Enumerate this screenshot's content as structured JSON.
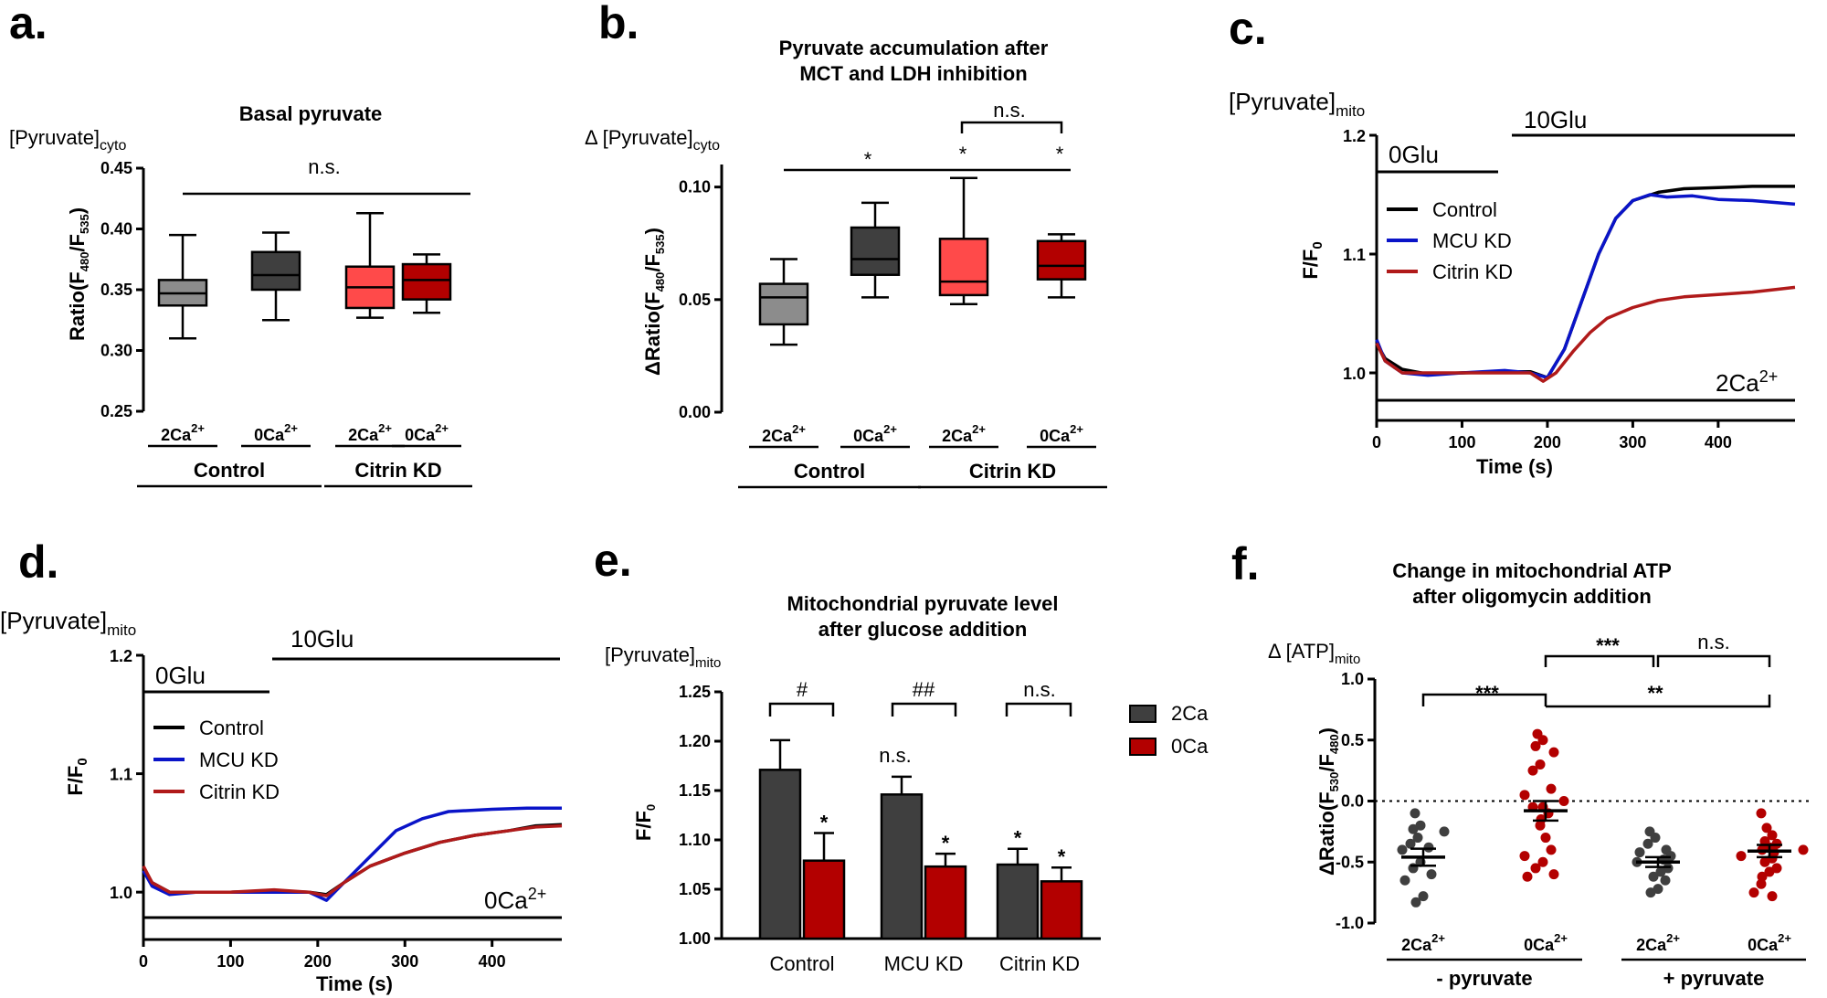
{
  "panels": {
    "a": {
      "letter": "a."
    },
    "b": {
      "letter": "b."
    },
    "c": {
      "letter": "c."
    },
    "d": {
      "letter": "d."
    },
    "e": {
      "letter": "e."
    },
    "f": {
      "letter": "f."
    }
  },
  "chart_data": [
    {
      "id": "a",
      "type": "box",
      "title": "Basal pyruvate",
      "ylabel_top": "[Pyruvate]",
      "ylabel_top_sub": "cyto",
      "ylabel": "Ratio(F",
      "ylabel_sub1": "480",
      "ylabel_mid": "/F",
      "ylabel_sub2": "535",
      "ylabel_end": ")",
      "ylim": [
        0.25,
        0.45
      ],
      "yticks": [
        "0.25",
        "0.30",
        "0.35",
        "0.40",
        "0.45"
      ],
      "categories": [
        "2Ca",
        "0Ca",
        "2Ca",
        "0Ca"
      ],
      "cat_sup": "2+",
      "groups": [
        "Control",
        "Citrin KD"
      ],
      "boxes": [
        {
          "min": 0.31,
          "q1": 0.337,
          "median": 0.347,
          "q3": 0.358,
          "max": 0.395,
          "color": "#8c8c8c"
        },
        {
          "min": 0.325,
          "q1": 0.35,
          "median": 0.362,
          "q3": 0.381,
          "max": 0.397,
          "color": "#3f3f3f"
        },
        {
          "min": 0.327,
          "q1": 0.335,
          "median": 0.352,
          "q3": 0.369,
          "max": 0.413,
          "color": "#ff4a4a"
        },
        {
          "min": 0.331,
          "q1": 0.342,
          "median": 0.358,
          "q3": 0.371,
          "max": 0.379,
          "color": "#b30000"
        }
      ],
      "annotations": {
        "ns": "n.s."
      }
    },
    {
      "id": "b",
      "type": "box",
      "title_line1": "Pyruvate accumulation after",
      "title_line2": "MCT and LDH inhibition",
      "ylabel_top": "Δ [Pyruvate]",
      "ylabel_top_sub": "cyto",
      "ylabel": "ΔRatio(F",
      "ylabel_sub1": "480",
      "ylabel_mid": "/F",
      "ylabel_sub2": "535",
      "ylabel_end": ")",
      "ylim": [
        0.0,
        0.11
      ],
      "yticks": [
        "0.00",
        "0.05",
        "0.10"
      ],
      "categories": [
        "2Ca",
        "0Ca",
        "2Ca",
        "0Ca"
      ],
      "cat_sup": "2+",
      "groups": [
        "Control",
        "Citrin KD"
      ],
      "boxes": [
        {
          "min": 0.03,
          "q1": 0.039,
          "median": 0.051,
          "q3": 0.057,
          "max": 0.068,
          "color": "#8c8c8c"
        },
        {
          "min": 0.051,
          "q1": 0.061,
          "median": 0.068,
          "q3": 0.082,
          "max": 0.093,
          "color": "#3f3f3f"
        },
        {
          "min": 0.048,
          "q1": 0.052,
          "median": 0.058,
          "q3": 0.077,
          "max": 0.104,
          "color": "#ff4a4a"
        },
        {
          "min": 0.051,
          "q1": 0.059,
          "median": 0.065,
          "q3": 0.076,
          "max": 0.079,
          "color": "#b30000"
        }
      ],
      "annotations": {
        "ns": "n.s.",
        "star": "*"
      }
    },
    {
      "id": "c",
      "type": "line",
      "ylabel_top": "[Pyruvate]",
      "ylabel_top_sub": "mito",
      "ylabel": "F/F",
      "ylabel_sub": "0",
      "xlabel": "Time (s)",
      "xlim": [
        0,
        490
      ],
      "ylim": [
        0.96,
        1.2
      ],
      "xticks": [
        "0",
        "100",
        "200",
        "300",
        "400"
      ],
      "yticks": [
        "1.0",
        "1.1",
        "1.2"
      ],
      "bars": {
        "zero_glu": "0Glu",
        "ten_glu": "10Glu",
        "calcium": "2Ca",
        "calcium_sup": "2+"
      },
      "series": [
        {
          "name": "Control",
          "color": "#000000",
          "pts": [
            [
              0,
              1.025
            ],
            [
              10,
              1.012
            ],
            [
              30,
              1.003
            ],
            [
              60,
              0.999
            ],
            [
              100,
              1.0
            ],
            [
              150,
              1.001
            ],
            [
              180,
              1.001
            ],
            [
              200,
              0.996
            ],
            [
              220,
              1.02
            ],
            [
              240,
              1.06
            ],
            [
              260,
              1.1
            ],
            [
              280,
              1.13
            ],
            [
              300,
              1.145
            ],
            [
              330,
              1.152
            ],
            [
              360,
              1.155
            ],
            [
              400,
              1.156
            ],
            [
              440,
              1.157
            ],
            [
              490,
              1.157
            ]
          ]
        },
        {
          "name": "MCU KD",
          "color": "#0a14c8",
          "pts": [
            [
              0,
              1.028
            ],
            [
              10,
              1.01
            ],
            [
              30,
              1.0
            ],
            [
              60,
              0.998
            ],
            [
              100,
              1.0
            ],
            [
              150,
              1.002
            ],
            [
              180,
              1.0
            ],
            [
              200,
              0.996
            ],
            [
              220,
              1.02
            ],
            [
              240,
              1.06
            ],
            [
              260,
              1.1
            ],
            [
              280,
              1.13
            ],
            [
              300,
              1.145
            ],
            [
              320,
              1.15
            ],
            [
              340,
              1.148
            ],
            [
              370,
              1.149
            ],
            [
              400,
              1.146
            ],
            [
              440,
              1.145
            ],
            [
              490,
              1.142
            ]
          ]
        },
        {
          "name": "Citrin KD",
          "color": "#b01a1a",
          "pts": [
            [
              0,
              1.025
            ],
            [
              10,
              1.01
            ],
            [
              30,
              1.0
            ],
            [
              60,
              1.0
            ],
            [
              100,
              1.0
            ],
            [
              150,
              1.0
            ],
            [
              180,
              1.0
            ],
            [
              195,
              0.993
            ],
            [
              210,
              1.0
            ],
            [
              230,
              1.018
            ],
            [
              250,
              1.034
            ],
            [
              270,
              1.046
            ],
            [
              300,
              1.055
            ],
            [
              330,
              1.061
            ],
            [
              360,
              1.064
            ],
            [
              400,
              1.066
            ],
            [
              440,
              1.068
            ],
            [
              490,
              1.072
            ]
          ]
        }
      ]
    },
    {
      "id": "d",
      "type": "line",
      "ylabel_top": "[Pyruvate]",
      "ylabel_top_sub": "mito",
      "ylabel": "F/F",
      "ylabel_sub": "0",
      "xlabel": "Time (s)",
      "xlim": [
        0,
        480
      ],
      "ylim": [
        0.96,
        1.2
      ],
      "xticks": [
        "0",
        "100",
        "200",
        "300",
        "400"
      ],
      "yticks": [
        "1.0",
        "1.1",
        "1.2"
      ],
      "bars": {
        "zero_glu": "0Glu",
        "ten_glu": "10Glu",
        "calcium": "0Ca",
        "calcium_sup": "2+"
      },
      "series": [
        {
          "name": "Control",
          "color": "#000000",
          "pts": [
            [
              0,
              1.02
            ],
            [
              10,
              1.008
            ],
            [
              30,
              1.0
            ],
            [
              60,
              1.0
            ],
            [
              100,
              1.0
            ],
            [
              150,
              1.001
            ],
            [
              190,
              1.0
            ],
            [
              210,
              0.998
            ],
            [
              230,
              1.008
            ],
            [
              260,
              1.022
            ],
            [
              300,
              1.033
            ],
            [
              340,
              1.042
            ],
            [
              380,
              1.048
            ],
            [
              420,
              1.052
            ],
            [
              450,
              1.056
            ],
            [
              480,
              1.057
            ]
          ]
        },
        {
          "name": "MCU KD",
          "color": "#0a14c8",
          "pts": [
            [
              0,
              1.018
            ],
            [
              10,
              1.005
            ],
            [
              30,
              0.998
            ],
            [
              60,
              1.0
            ],
            [
              100,
              1.0
            ],
            [
              150,
              1.0
            ],
            [
              190,
              1.0
            ],
            [
              210,
              0.993
            ],
            [
              230,
              1.008
            ],
            [
              260,
              1.03
            ],
            [
              290,
              1.052
            ],
            [
              320,
              1.062
            ],
            [
              350,
              1.068
            ],
            [
              400,
              1.07
            ],
            [
              440,
              1.071
            ],
            [
              480,
              1.071
            ]
          ]
        },
        {
          "name": "Citrin KD",
          "color": "#b01a1a",
          "pts": [
            [
              0,
              1.022
            ],
            [
              10,
              1.008
            ],
            [
              30,
              1.0
            ],
            [
              60,
              1.0
            ],
            [
              100,
              1.0
            ],
            [
              150,
              1.002
            ],
            [
              190,
              1.0
            ],
            [
              210,
              0.997
            ],
            [
              230,
              1.008
            ],
            [
              260,
              1.022
            ],
            [
              300,
              1.033
            ],
            [
              340,
              1.042
            ],
            [
              380,
              1.048
            ],
            [
              420,
              1.052
            ],
            [
              450,
              1.055
            ],
            [
              480,
              1.056
            ]
          ]
        }
      ]
    },
    {
      "id": "e",
      "type": "bar",
      "title_line1": "Mitochondrial pyruvate level",
      "title_line2": "after glucose addition",
      "ylabel_top": "[Pyruvate]",
      "ylabel_top_sub": "mito",
      "ylabel": "F/F",
      "ylabel_sub": "0",
      "ylim": [
        1.0,
        1.25
      ],
      "yticks": [
        "1.00",
        "1.05",
        "1.10",
        "1.15",
        "1.20",
        "1.25"
      ],
      "categories": [
        "Control",
        "MCU KD",
        "Citrin KD"
      ],
      "series": [
        {
          "name": "2Ca",
          "color": "#3f3f3f",
          "values": [
            1.171,
            1.146,
            1.075
          ],
          "err": [
            0.03,
            0.018,
            0.016
          ]
        },
        {
          "name": "0Ca",
          "color": "#b30000",
          "values": [
            1.079,
            1.073,
            1.058
          ],
          "err": [
            0.028,
            0.013,
            0.014
          ]
        }
      ],
      "annotations": {
        "hash1": "#",
        "hash2": "##",
        "ns": "n.s.",
        "star": "*"
      }
    },
    {
      "id": "f",
      "type": "scatter",
      "title_line1": "Change in mitochondrial ATP",
      "title_line2": "after oligomycin addition",
      "ylabel_top": "Δ [ATP]",
      "ylabel_top_sub": "mito",
      "ylabel": "ΔRatio(F",
      "ylabel_sub1": "530",
      "ylabel_mid": "/F",
      "ylabel_sub2": "480",
      "ylabel_end": ")",
      "ylim": [
        -1.0,
        1.0
      ],
      "yticks": [
        "-1.0",
        "-0.5",
        "0.0",
        "0.5",
        "1.0"
      ],
      "categories": [
        "2Ca",
        "0Ca",
        "2Ca",
        "0Ca"
      ],
      "cat_sup": "2+",
      "groups": [
        "- pyruvate",
        "+ pyruvate"
      ],
      "groups_data": [
        {
          "color": "#3f3f3f",
          "mean": -0.46,
          "sem": 0.07,
          "points": [
            -0.1,
            -0.2,
            -0.23,
            -0.25,
            -0.3,
            -0.35,
            -0.38,
            -0.4,
            -0.5,
            -0.55,
            -0.6,
            -0.65,
            -0.78,
            -0.83
          ]
        },
        {
          "color": "#b30000",
          "mean": -0.08,
          "sem": 0.08,
          "points": [
            0.55,
            0.5,
            0.45,
            0.4,
            0.3,
            0.25,
            0.1,
            0.05,
            -0.05,
            -0.1,
            -0.15,
            -0.2,
            -0.3,
            -0.4,
            -0.45,
            -0.5,
            -0.55,
            -0.6,
            -0.62,
            -0.05,
            0.0
          ]
        },
        {
          "color": "#3f3f3f",
          "mean": -0.5,
          "sem": 0.04,
          "points": [
            -0.25,
            -0.3,
            -0.35,
            -0.4,
            -0.42,
            -0.45,
            -0.48,
            -0.5,
            -0.55,
            -0.58,
            -0.62,
            -0.65,
            -0.72,
            -0.75
          ]
        },
        {
          "color": "#b30000",
          "mean": -0.41,
          "sem": 0.05,
          "points": [
            -0.1,
            -0.22,
            -0.28,
            -0.33,
            -0.35,
            -0.38,
            -0.4,
            -0.42,
            -0.45,
            -0.47,
            -0.5,
            -0.55,
            -0.58,
            -0.62,
            -0.68,
            -0.75,
            -0.78,
            -0.4
          ]
        }
      ],
      "annotations": {
        "s3": "***",
        "s2": "**",
        "ns": "n.s."
      }
    }
  ]
}
